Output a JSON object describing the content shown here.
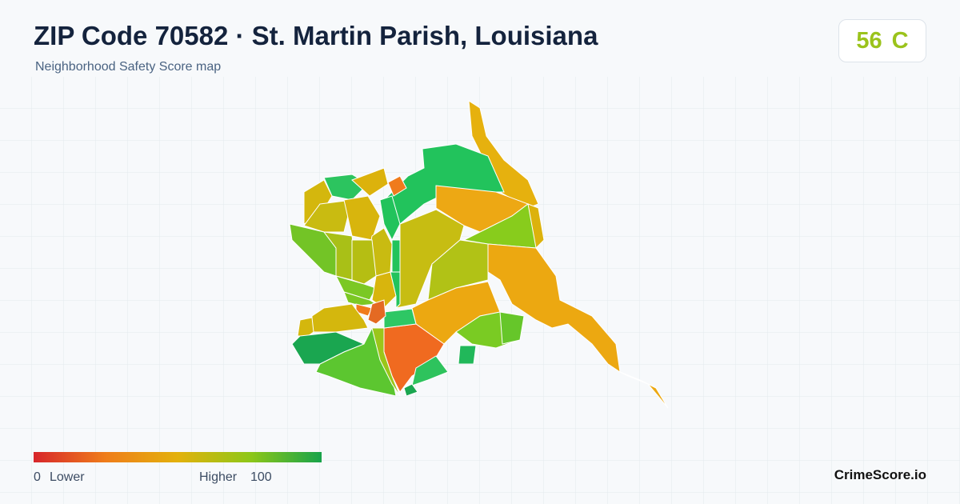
{
  "header": {
    "title": "ZIP Code 70582 · St. Martin Parish, Louisiana",
    "subtitle": "Neighborhood Safety Score map"
  },
  "score": {
    "value": 56,
    "grade": "C"
  },
  "legend": {
    "min": 0,
    "min_label": "Lower",
    "max_label": "Higher",
    "max": 100
  },
  "brand": "CrimeScore.io"
}
